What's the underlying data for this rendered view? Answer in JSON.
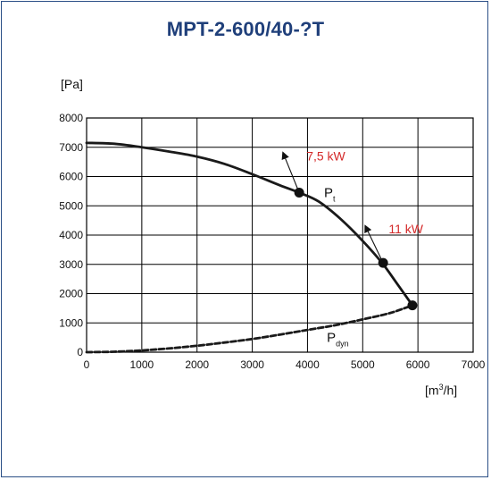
{
  "title": "MPT-2-600/40-?T",
  "chart_data": {
    "type": "line",
    "title": "MPT-2-600/40-?T",
    "ylabel": "[Pa]",
    "xlabel": "[m³/h]",
    "xlabel_base": "[m",
    "xlabel_sup": "3",
    "xlabel_tail": "/h]",
    "xlim": [
      0,
      7000
    ],
    "ylim": [
      0,
      8000
    ],
    "x_ticks": [
      0,
      1000,
      2000,
      3000,
      4000,
      5000,
      6000,
      7000
    ],
    "y_ticks": [
      0,
      1000,
      2000,
      3000,
      4000,
      5000,
      6000,
      7000,
      8000
    ],
    "grid": true,
    "series": [
      {
        "name": "Pt",
        "label_main": "P",
        "label_sub": "t",
        "style": "solid",
        "x": [
          0,
          500,
          1000,
          1500,
          2000,
          2500,
          3000,
          3500,
          3850,
          4200,
          4600,
          5000,
          5350,
          5600,
          5900
        ],
        "y": [
          7150,
          7120,
          7000,
          6850,
          6680,
          6430,
          6080,
          5700,
          5450,
          5150,
          4550,
          3800,
          3050,
          2400,
          1600
        ]
      },
      {
        "name": "Pdyn",
        "label_main": "P",
        "label_sub": "dyn",
        "style": "dashed",
        "x": [
          0,
          500,
          1000,
          1500,
          2000,
          2500,
          3000,
          3500,
          4000,
          4500,
          5000,
          5500,
          5900
        ],
        "y": [
          0,
          15,
          60,
          130,
          220,
          330,
          450,
          600,
          760,
          920,
          1120,
          1340,
          1600
        ]
      }
    ],
    "operating_points": [
      {
        "x": 3850,
        "y": 5450
      },
      {
        "x": 5370,
        "y": 3050
      },
      {
        "x": 5900,
        "y": 1600
      }
    ],
    "power_annotations": [
      {
        "label": "7,5 kW",
        "from": {
          "x": 3850,
          "y": 5450
        },
        "to": {
          "x": 3560,
          "y": 6800
        }
      },
      {
        "label": "11 kW",
        "from": {
          "x": 5370,
          "y": 3050
        },
        "to": {
          "x": 5050,
          "y": 4300
        }
      }
    ],
    "colors": {
      "curve": "#1a1a1a",
      "annotation": "#d42a2a",
      "title": "#1f3f7a",
      "frame": "#2b4f86"
    }
  }
}
